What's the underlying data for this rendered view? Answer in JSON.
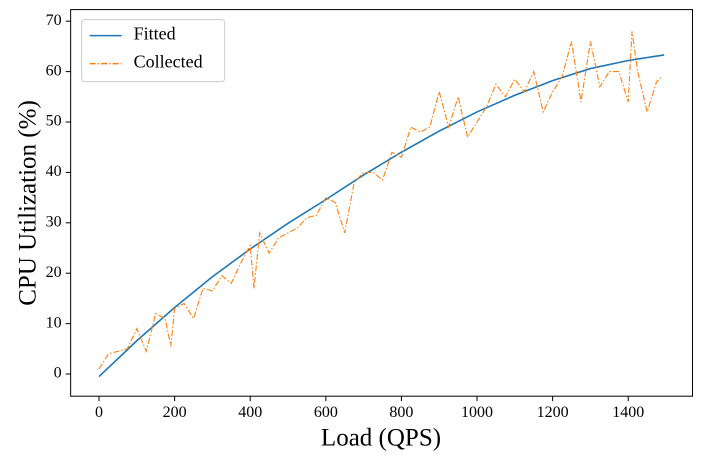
{
  "chart_data": {
    "type": "line",
    "xlabel": "Load (QPS)",
    "ylabel": "CPU Utilization (%)",
    "series": [
      {
        "name": "Fitted",
        "color": "#1f77b4",
        "style": "solid",
        "x": [
          0,
          100,
          200,
          300,
          400,
          500,
          600,
          700,
          800,
          900,
          1000,
          1100,
          1200,
          1300,
          1400,
          1495
        ],
        "values": [
          -0.5,
          6.6,
          13.2,
          19.3,
          24.8,
          29.9,
          34.6,
          39.5,
          44,
          48.2,
          52,
          55.3,
          58.2,
          60.6,
          62.2,
          63.3
        ]
      },
      {
        "name": "Collected",
        "color": "#ff7f0e",
        "style": "dashdot",
        "x": [
          0,
          25,
          50,
          75,
          100,
          125,
          150,
          175,
          190,
          200,
          225,
          250,
          275,
          300,
          325,
          350,
          375,
          400,
          410,
          425,
          450,
          475,
          500,
          525,
          550,
          575,
          600,
          625,
          650,
          675,
          700,
          725,
          750,
          775,
          800,
          825,
          850,
          875,
          900,
          925,
          950,
          975,
          1000,
          1025,
          1050,
          1075,
          1100,
          1125,
          1150,
          1175,
          1200,
          1225,
          1250,
          1275,
          1300,
          1325,
          1350,
          1375,
          1400,
          1410,
          1425,
          1450,
          1475,
          1490
        ],
        "values": [
          1,
          4,
          4.5,
          5,
          9,
          4.5,
          12,
          11,
          5.5,
          13,
          14,
          11,
          17,
          16.5,
          19.5,
          18,
          22,
          25.5,
          17,
          28,
          24,
          27,
          28,
          29,
          31,
          31.5,
          35,
          34,
          28,
          38,
          40,
          40,
          38.5,
          44,
          43,
          49,
          48,
          49,
          56,
          49,
          55,
          47,
          50,
          53,
          57.5,
          55,
          58.5,
          56,
          60,
          52,
          56,
          59,
          66,
          54,
          66,
          57,
          60,
          60,
          54,
          68,
          60,
          52,
          58,
          59
        ]
      }
    ],
    "xlim": [
      -75,
      1570
    ],
    "xticks": [
      0,
      200,
      400,
      600,
      800,
      1000,
      1200,
      1400
    ],
    "ylim": [
      -4.4,
      72.3
    ],
    "yticks": [
      0,
      10,
      20,
      30,
      40,
      50,
      60,
      70
    ],
    "legend": "upper-left"
  }
}
